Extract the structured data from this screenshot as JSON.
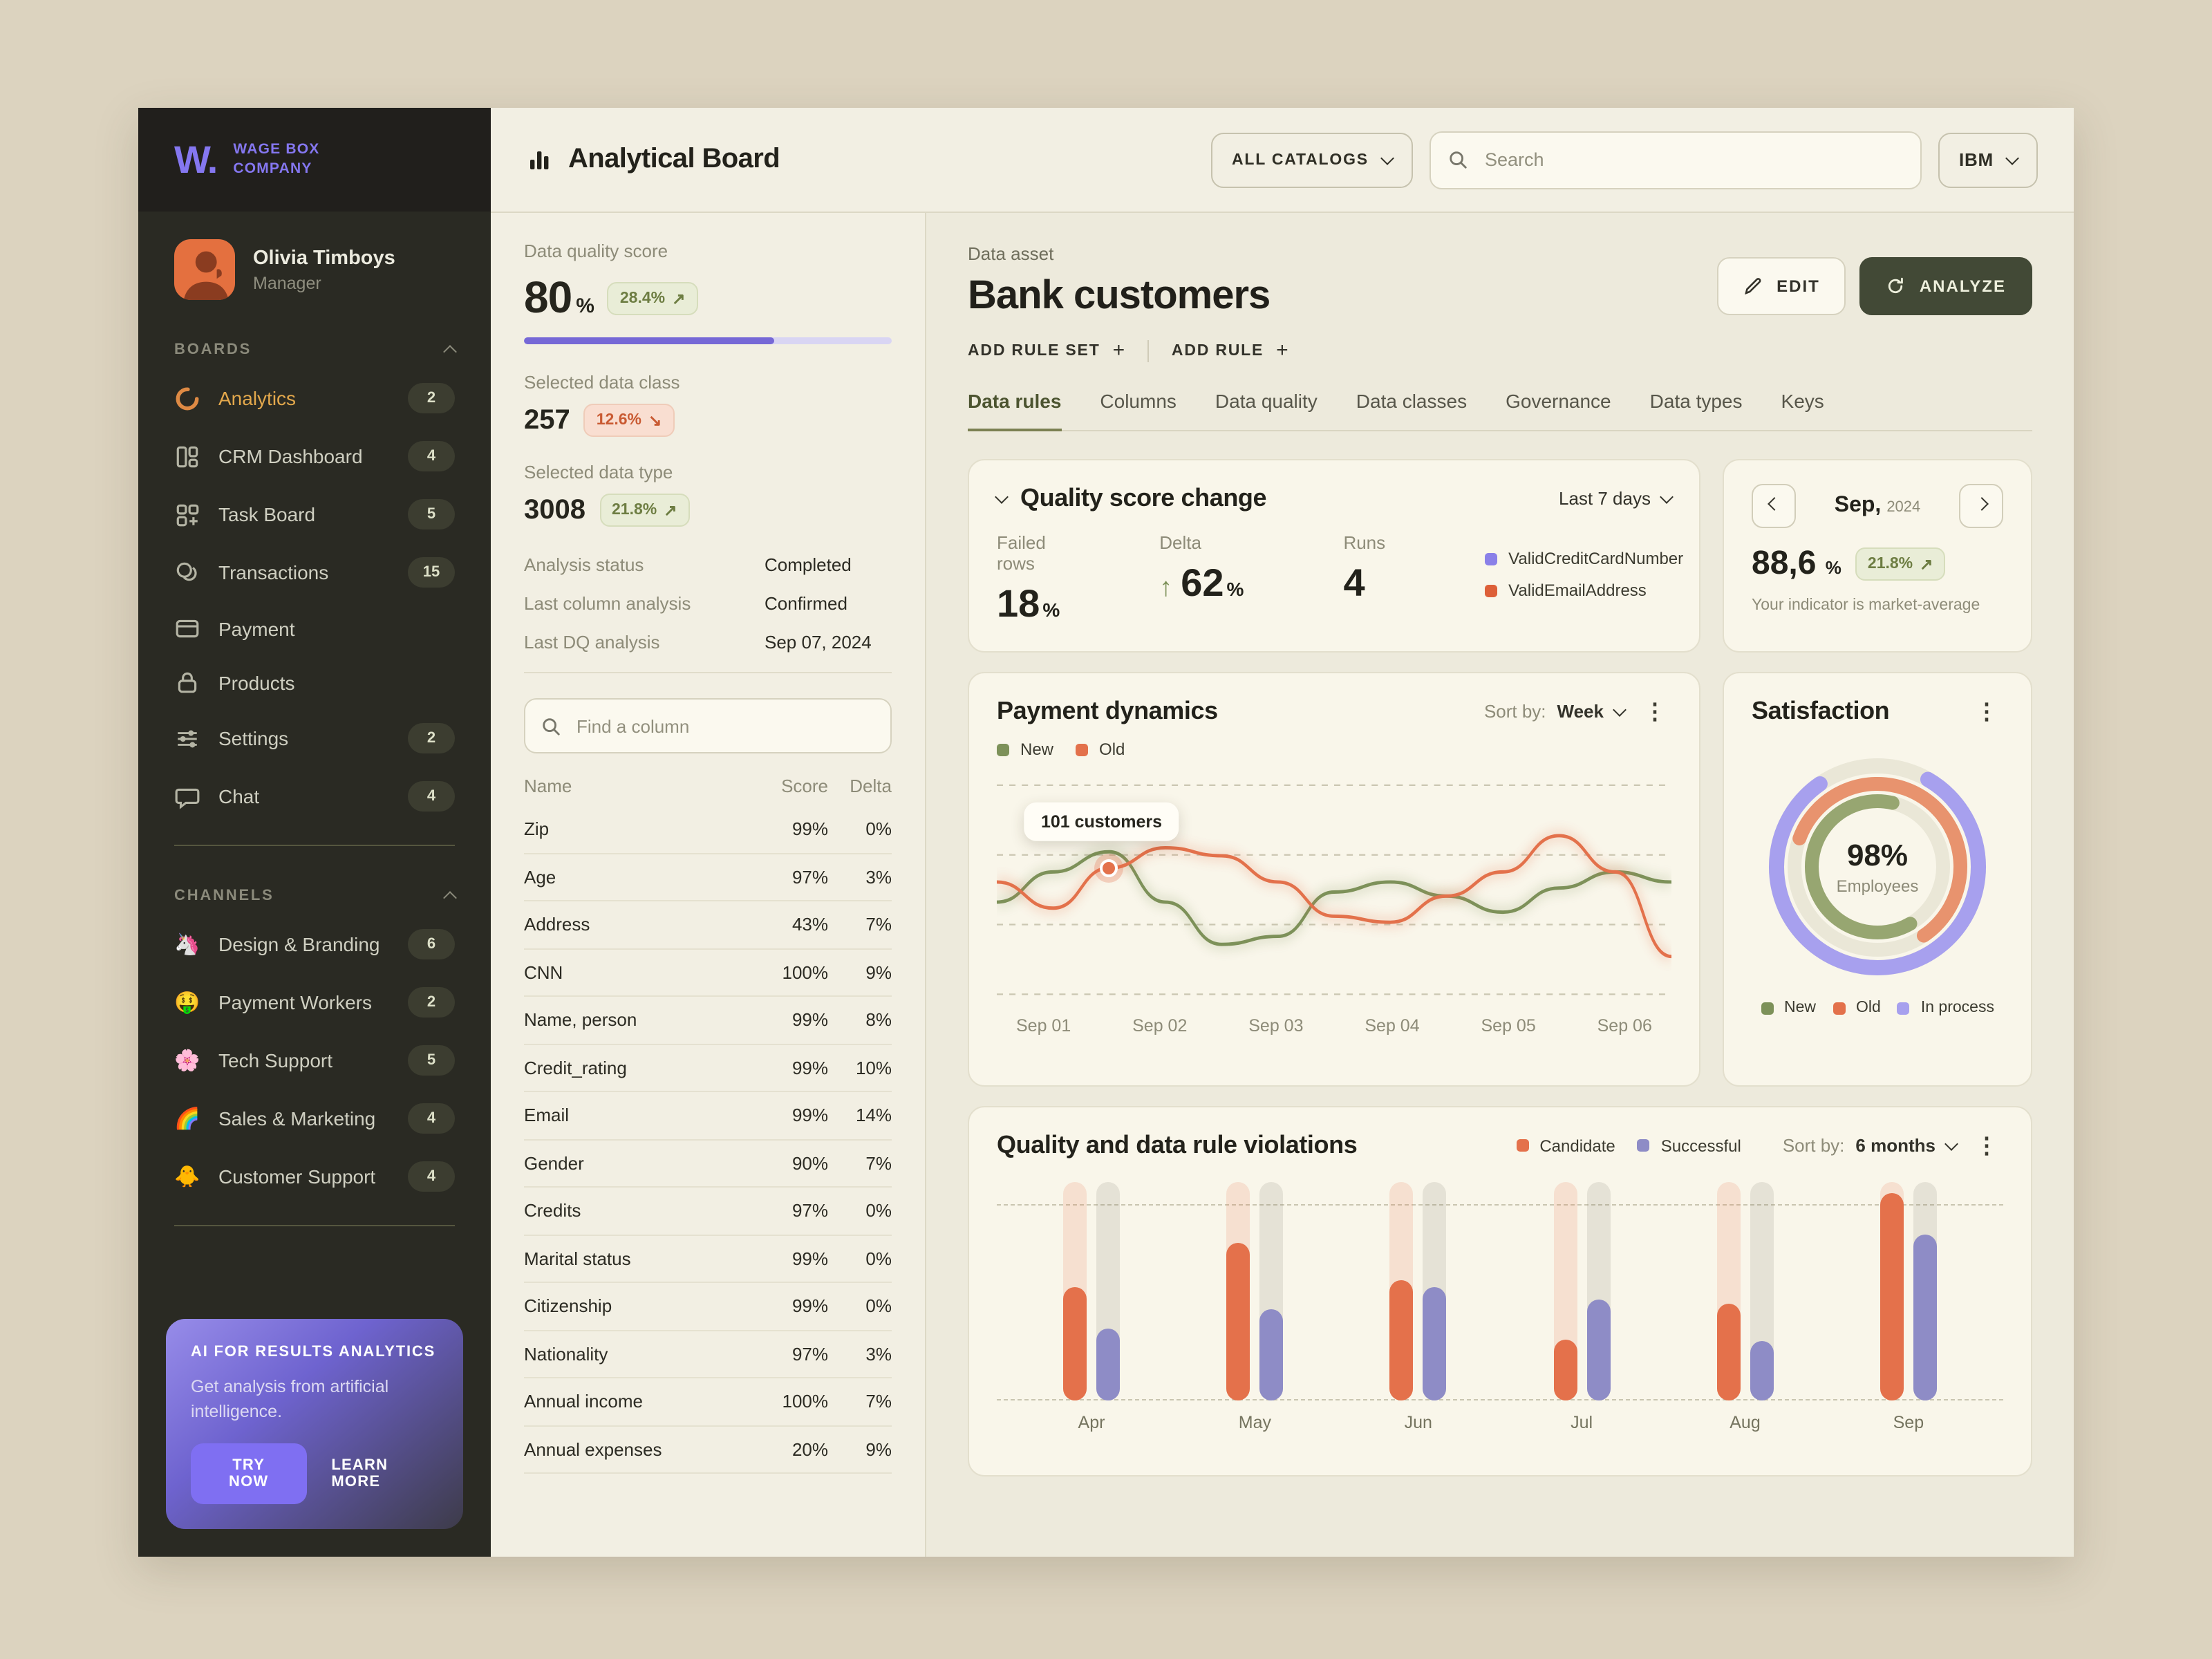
{
  "brand": {
    "logo": "W.",
    "company_line1": "wage Box",
    "company_line2": "company"
  },
  "user": {
    "name": "Olivia Timboys",
    "role": "Manager"
  },
  "sidebar": {
    "boards_label": "BOARDS",
    "boards": [
      {
        "label": "Analytics",
        "badge": "2",
        "icon": "loader",
        "active": true
      },
      {
        "label": "CRM Dashboard",
        "badge": "4",
        "icon": "dashboard"
      },
      {
        "label": "Task Board",
        "badge": "5",
        "icon": "taskboard"
      },
      {
        "label": "Transactions",
        "badge": "15",
        "icon": "coins"
      },
      {
        "label": "Payment",
        "badge": "",
        "icon": "card"
      },
      {
        "label": "Products",
        "badge": "",
        "icon": "lock"
      },
      {
        "label": "Settings",
        "badge": "2",
        "icon": "sliders"
      },
      {
        "label": "Chat",
        "badge": "4",
        "icon": "chat"
      }
    ],
    "channels_label": "CHANNELS",
    "channels": [
      {
        "label": "Design & Branding",
        "badge": "6",
        "emoji": "🦄"
      },
      {
        "label": "Payment Workers",
        "badge": "2",
        "emoji": "🤑"
      },
      {
        "label": "Tech Support",
        "badge": "5",
        "emoji": "🌸"
      },
      {
        "label": "Sales & Marketing",
        "badge": "4",
        "emoji": "🌈"
      },
      {
        "label": "Customer Support",
        "badge": "4",
        "emoji": "🐥"
      }
    ],
    "ai_card": {
      "title": "AI FOR RESULTS ANALYTICS",
      "body": "Get analysis from artificial intelligence.",
      "try_label": "TRY NOW",
      "learn_label": "LEARN MORE"
    }
  },
  "topbar": {
    "title": "Analytical Board",
    "catalogs_label": "ALL CATALOGS",
    "search_placeholder": "Search",
    "org_label": "IBM"
  },
  "panel": {
    "quality_score": {
      "label": "Data quality score",
      "value": "80",
      "unit": "%",
      "badge": {
        "text": "28.4%",
        "arrow": "↗",
        "tone": "good"
      },
      "progress": 68
    },
    "data_class": {
      "label": "Selected data class",
      "value": "257",
      "badge": {
        "text": "12.6%",
        "arrow": "↘",
        "tone": "bad"
      }
    },
    "data_type": {
      "label": "Selected data type",
      "value": "3008",
      "badge": {
        "text": "21.8%",
        "arrow": "↗",
        "tone": "good"
      }
    },
    "meta": [
      {
        "label": "Analysis status",
        "value": "Completed"
      },
      {
        "label": "Last column analysis",
        "value": "Confirmed"
      },
      {
        "label": "Last DQ analysis",
        "value": "Sep 07, 2024"
      }
    ],
    "search_placeholder": "Find a column",
    "table": {
      "headers": [
        "Name",
        "Score",
        "Delta"
      ],
      "rows": [
        [
          "Zip",
          "99%",
          "0%"
        ],
        [
          "Age",
          "97%",
          "3%"
        ],
        [
          "Address",
          "43%",
          "7%"
        ],
        [
          "CNN",
          "100%",
          "9%"
        ],
        [
          "Name, person",
          "99%",
          "8%"
        ],
        [
          "Credit_rating",
          "99%",
          "10%"
        ],
        [
          "Email",
          "99%",
          "14%"
        ],
        [
          "Gender",
          "90%",
          "7%"
        ],
        [
          "Credits",
          "97%",
          "0%"
        ],
        [
          "Marital status",
          "99%",
          "0%"
        ],
        [
          "Citizenship",
          "99%",
          "0%"
        ],
        [
          "Nationality",
          "97%",
          "3%"
        ],
        [
          "Annual income",
          "100%",
          "7%"
        ],
        [
          "Annual expenses",
          "20%",
          "9%"
        ]
      ]
    }
  },
  "main": {
    "asset_label": "Data asset",
    "asset_title": "Bank customers",
    "edit_label": "EDIT",
    "analyze_label": "ANALYZE",
    "add_rule_set_label": "ADD RULE SET",
    "add_rule_label": "ADD RULE",
    "tabs": [
      {
        "label": "Data rules",
        "active": true
      },
      {
        "label": "Columns"
      },
      {
        "label": "Data quality"
      },
      {
        "label": "Data classes"
      },
      {
        "label": "Governance"
      },
      {
        "label": "Data types"
      },
      {
        "label": "Keys"
      }
    ],
    "quality_change": {
      "title": "Quality score change",
      "period": "Last 7 days",
      "stats": [
        {
          "label": "Failed rows",
          "value": "18",
          "unit": "%"
        },
        {
          "label": "Delta",
          "value": "62",
          "unit": "%",
          "arrow": "↑"
        },
        {
          "label": "Runs",
          "value": "4",
          "unit": ""
        }
      ],
      "legend": [
        {
          "label": "ValidCreditCardNumber",
          "color": "#8a80e8"
        },
        {
          "label": "ValidEmailAddress",
          "color": "#dd5f38"
        }
      ]
    },
    "indicator": {
      "month": "Sep,",
      "year": "2024",
      "value": "88,6",
      "unit": "%",
      "badge": {
        "text": "21.8%",
        "arrow": "↗",
        "tone": "good"
      },
      "note": "Your indicator is market-average"
    },
    "payment": {
      "title": "Payment dynamics",
      "sort_label": "Sort by:",
      "sort_value": "Week"
    },
    "satisfaction": {
      "title": "Satisfaction"
    },
    "violations": {
      "title": "Quality and data rule violations",
      "sort_label": "Sort by:",
      "sort_value": "6 months"
    }
  },
  "chart_data": [
    {
      "type": "line",
      "title": "Payment dynamics",
      "x": [
        "Sep 01",
        "Sep 02",
        "Sep 03",
        "Sep 04",
        "Sep 05",
        "Sep 06"
      ],
      "ylim": [
        0,
        100
      ],
      "grid": "dashed-horizontal",
      "legend_position": "top-left",
      "series": [
        {
          "name": "New",
          "color": "#7d9159",
          "values": [
            45,
            60,
            70,
            45,
            24,
            28,
            50,
            55,
            48,
            40,
            52,
            60,
            55
          ]
        },
        {
          "name": "Old",
          "color": "#e3714b",
          "values": [
            55,
            42,
            62,
            72,
            68,
            55,
            38,
            35,
            48,
            60,
            78,
            60,
            18
          ]
        }
      ],
      "tooltip": {
        "label": "101 customers",
        "series": "Old",
        "point_index": 2
      }
    },
    {
      "type": "donut",
      "title": "Satisfaction",
      "center_value": "98%",
      "center_label": "Employees",
      "segments": [
        {
          "name": "In process",
          "color": "#a7a0ee",
          "fraction": 0.82,
          "ring": "outer",
          "start_deg": 300
        },
        {
          "name": "Old",
          "color": "#e8936e",
          "fraction": 0.6,
          "ring": "middle",
          "start_deg": 200
        },
        {
          "name": "New",
          "color": "#97a671",
          "fraction": 0.62,
          "ring": "inner",
          "start_deg": 60
        }
      ],
      "legend": [
        {
          "label": "New",
          "color": "#7d9159"
        },
        {
          "label": "Old",
          "color": "#e3714b"
        },
        {
          "label": "In process",
          "color": "#a7a0ee"
        }
      ]
    },
    {
      "type": "bar",
      "title": "Quality and data rule violations",
      "categories": [
        "Apr",
        "May",
        "Jun",
        "Jul",
        "Aug",
        "Sep"
      ],
      "ylim": [
        0,
        100
      ],
      "series": [
        {
          "name": "Candidate",
          "color": "#e4714b",
          "track_color": "rgba(228,113,75,0.16)",
          "values": [
            52,
            72,
            55,
            28,
            44,
            95
          ]
        },
        {
          "name": "Successful",
          "color": "#8e8cc6",
          "track_color": "rgba(110,108,95,0.14)",
          "values": [
            33,
            42,
            52,
            46,
            27,
            76
          ]
        }
      ]
    }
  ]
}
